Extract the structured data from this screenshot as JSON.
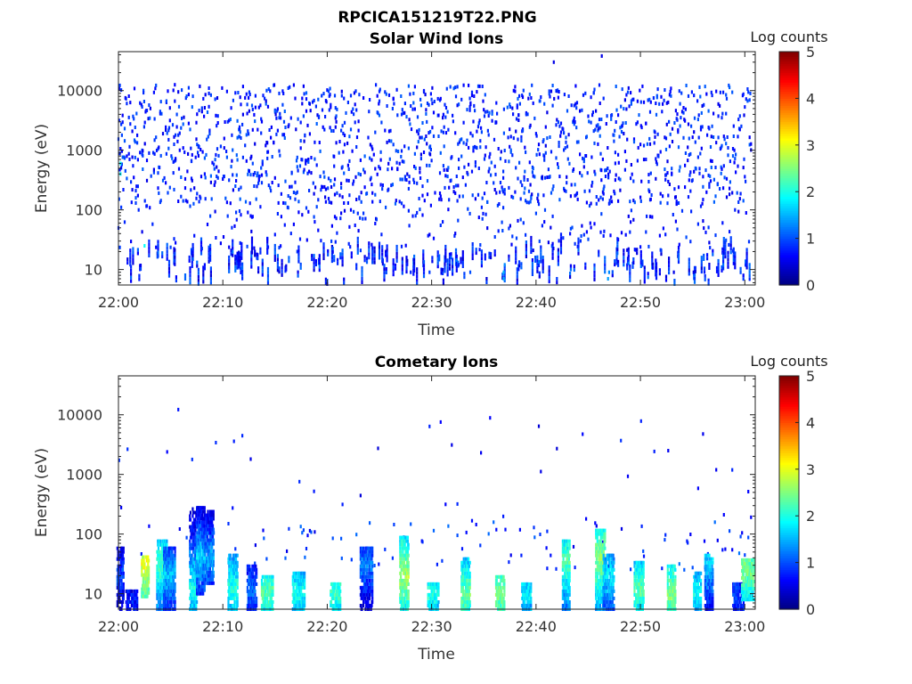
{
  "figure": {
    "title": "RPCICA151219T22.PNG"
  },
  "chart_data": [
    {
      "type": "heatmap",
      "title": "Solar Wind Ions",
      "xlabel": "Time",
      "ylabel": "Energy (eV)",
      "x_ticks": [
        "22:00",
        "22:10",
        "22:20",
        "22:30",
        "22:40",
        "22:50",
        "23:00"
      ],
      "xlim_minutes": [
        0,
        61
      ],
      "y_scale": "log",
      "y_ticks": [
        "10",
        "100",
        "1000",
        "10000"
      ],
      "ylim": [
        5.5,
        45000
      ],
      "colorbar": {
        "label": "Log counts",
        "ticks": [
          "0",
          "1",
          "2",
          "3",
          "4",
          "5"
        ],
        "range": [
          0,
          5
        ],
        "colormap": "jet"
      },
      "grid": false,
      "cells": [
        [
          0.2,
          400,
          1.8
        ],
        [
          0.2,
          600,
          1.9
        ],
        [
          2.5,
          25,
          1.9
        ],
        [
          14.1,
          1200,
          0.6
        ],
        [
          14.2,
          1350,
          0.5
        ],
        [
          28.0,
          9,
          0.8
        ],
        [
          29.8,
          9,
          0.9
        ],
        [
          32.6,
          12,
          0.8
        ],
        [
          33.7,
          9,
          1.0
        ],
        [
          36.9,
          7,
          1.5
        ],
        [
          36.9,
          9,
          1.5
        ],
        [
          37.0,
          12,
          1.3
        ],
        [
          41.7,
          30000,
          0.5
        ],
        [
          46.9,
          7,
          1.4
        ],
        [
          47.0,
          9,
          1.3
        ],
        [
          46.3,
          38000,
          0.5
        ],
        [
          50.1,
          300,
          0.6
        ],
        [
          53.2,
          9,
          0.5
        ],
        [
          55.1,
          9,
          0.5
        ]
      ],
      "note_marks": "sparse log-count pixels, values mostly 0-1 (dark blue)"
    },
    {
      "type": "heatmap",
      "title": "Cometary Ions",
      "xlabel": "Time",
      "ylabel": "Energy (eV)",
      "x_ticks": [
        "22:00",
        "22:10",
        "22:20",
        "22:30",
        "22:40",
        "22:50",
        "23:00"
      ],
      "xlim_minutes": [
        0,
        61
      ],
      "y_scale": "log",
      "y_ticks": [
        "10",
        "100",
        "1000",
        "10000"
      ],
      "ylim": [
        5.5,
        45000
      ],
      "colorbar": {
        "label": "Log counts",
        "ticks": [
          "0",
          "1",
          "2",
          "3",
          "4",
          "5"
        ],
        "range": [
          0,
          5
        ],
        "colormap": "jet"
      },
      "grid": false,
      "columns": [
        {
          "t": 0.2,
          "emin": 5.5,
          "emax": 60,
          "peak": 1.0,
          "peakE": 20
        },
        {
          "t": 1.3,
          "emin": 5.5,
          "emax": 12,
          "peak": 0.8,
          "peakE": 8
        },
        {
          "t": 2.6,
          "emin": 9,
          "emax": 45,
          "peak": 3.0,
          "peakE": 32
        },
        {
          "t": 4.2,
          "emin": 5.5,
          "emax": 80,
          "peak": 2.2,
          "peakE": 30
        },
        {
          "t": 4.9,
          "emin": 5.5,
          "emax": 60,
          "peak": 1.6,
          "peakE": 20
        },
        {
          "t": 7.2,
          "emin": 5.5,
          "emax": 300,
          "peak": 2.0,
          "peakE": 12
        },
        {
          "t": 7.9,
          "emin": 10,
          "emax": 280,
          "peak": 1.7,
          "peakE": 40
        },
        {
          "t": 8.6,
          "emin": 15,
          "emax": 250,
          "peak": 1.5,
          "peakE": 40
        },
        {
          "t": 11.0,
          "emin": 5.5,
          "emax": 50,
          "peak": 2.1,
          "peakE": 12
        },
        {
          "t": 12.8,
          "emin": 5.5,
          "emax": 30,
          "peak": 1.2,
          "peakE": 12
        },
        {
          "t": 14.3,
          "emin": 5.5,
          "emax": 20,
          "peak": 2.3,
          "peakE": 10
        },
        {
          "t": 17.3,
          "emin": 5.5,
          "emax": 25,
          "peak": 2.0,
          "peakE": 10
        },
        {
          "t": 20.8,
          "emin": 5.5,
          "emax": 15,
          "peak": 2.2,
          "peakE": 10
        },
        {
          "t": 23.8,
          "emin": 5.5,
          "emax": 60,
          "peak": 1.3,
          "peakE": 30
        },
        {
          "t": 27.4,
          "emin": 5.5,
          "emax": 90,
          "peak": 2.7,
          "peakE": 20
        },
        {
          "t": 30.2,
          "emin": 5.5,
          "emax": 15,
          "peak": 2.0,
          "peakE": 10
        },
        {
          "t": 33.3,
          "emin": 5.5,
          "emax": 40,
          "peak": 2.4,
          "peakE": 10
        },
        {
          "t": 36.6,
          "emin": 5.5,
          "emax": 20,
          "peak": 2.5,
          "peakE": 10
        },
        {
          "t": 39.1,
          "emin": 5.5,
          "emax": 15,
          "peak": 1.8,
          "peakE": 10
        },
        {
          "t": 42.9,
          "emin": 5.5,
          "emax": 80,
          "peak": 2.3,
          "peakE": 35
        },
        {
          "t": 46.2,
          "emin": 5.5,
          "emax": 120,
          "peak": 2.6,
          "peakE": 40
        },
        {
          "t": 47.0,
          "emin": 5.5,
          "emax": 50,
          "peak": 1.8,
          "peakE": 20
        },
        {
          "t": 49.9,
          "emin": 5.5,
          "emax": 35,
          "peak": 2.3,
          "peakE": 12
        },
        {
          "t": 53.0,
          "emin": 5.5,
          "emax": 30,
          "peak": 2.5,
          "peakE": 10
        },
        {
          "t": 55.5,
          "emin": 5.5,
          "emax": 25,
          "peak": 1.9,
          "peakE": 10
        },
        {
          "t": 56.6,
          "emin": 5.5,
          "emax": 45,
          "peak": 1.7,
          "peakE": 35
        },
        {
          "t": 59.4,
          "emin": 5.5,
          "emax": 15,
          "peak": 1.0,
          "peakE": 10
        },
        {
          "t": 60.3,
          "emin": 8,
          "emax": 40,
          "peak": 2.5,
          "peakE": 25
        }
      ],
      "note_marks": "bursts at low energy, sparse dots at high energy"
    }
  ]
}
